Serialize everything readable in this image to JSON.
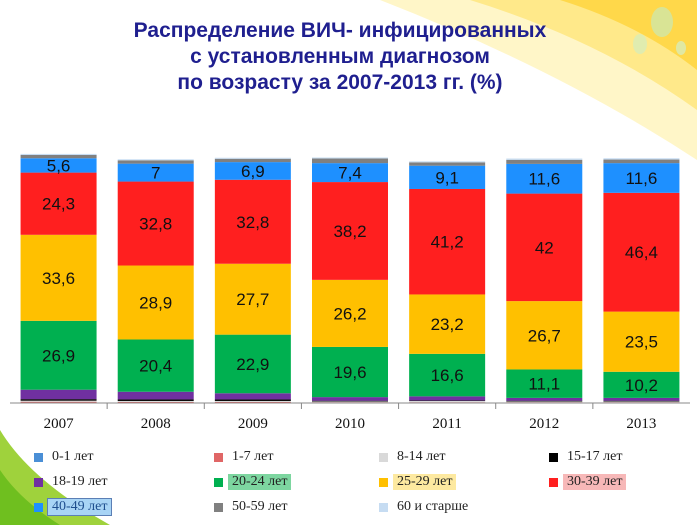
{
  "title_lines": [
    "Распределение ВИЧ- инфицированных",
    "с установленным диагнозом",
    "по возрасту за 2007-2013 гг. (%)"
  ],
  "chart_data": {
    "type": "bar",
    "stacked": true,
    "categories": [
      "2007",
      "2008",
      "2009",
      "2010",
      "2011",
      "2012",
      "2013"
    ],
    "ylim": [
      0,
      100
    ],
    "series": [
      {
        "name": "0-1 лет",
        "color": "#4a8fd6",
        "values": [
          0.2,
          0.1,
          0.1,
          0.1,
          0.1,
          0.1,
          0.1
        ]
      },
      {
        "name": "1-7 лет",
        "color": "#e06666",
        "values": [
          0.3,
          0.3,
          0.3,
          0.2,
          0.2,
          0.2,
          0.2
        ]
      },
      {
        "name": "8-14 лет",
        "color": "#d9d9d9",
        "values": [
          0.4,
          0.4,
          0.4,
          0.3,
          0.5,
          0.3,
          0.3
        ]
      },
      {
        "name": "15-17 лет",
        "color": "#000000",
        "values": [
          0.6,
          0.6,
          0.6,
          0.3,
          0.2,
          0.3,
          0.3
        ]
      },
      {
        "name": "18-19 лет",
        "color": "#7030a0",
        "values": [
          3.7,
          3.0,
          2.4,
          1.4,
          1.6,
          1.1,
          1.1
        ]
      },
      {
        "name": "20-24 лет",
        "color": "#00b050",
        "values": [
          26.9,
          20.4,
          22.9,
          19.6,
          16.6,
          11.1,
          10.2
        ]
      },
      {
        "name": "25-29 лет",
        "color": "#ffc000",
        "values": [
          33.6,
          28.9,
          27.7,
          26.2,
          23.2,
          26.7,
          23.5
        ]
      },
      {
        "name": "30-39 лет",
        "color": "#ff1f1f",
        "values": [
          24.3,
          32.8,
          32.8,
          38.2,
          41.2,
          42.0,
          46.4
        ]
      },
      {
        "name": "40-49 лет",
        "color": "#1e90ff",
        "values": [
          5.6,
          7.0,
          6.9,
          7.4,
          9.1,
          11.6,
          11.6
        ]
      },
      {
        "name": "50-59 лет",
        "color": "#808080",
        "values": [
          1.3,
          1.3,
          1.3,
          1.8,
          1.3,
          1.6,
          1.4
        ]
      },
      {
        "name": "60 и старше",
        "color": "#c6dcf2",
        "values": [
          0.4,
          0.4,
          0.4,
          0.4,
          0.4,
          0.5,
          0.5
        ]
      }
    ],
    "labeled_series": [
      "20-24 лет",
      "25-29 лет",
      "30-39 лет",
      "40-49 лет"
    ],
    "label_texts": {
      "20-24 лет": [
        "26,9",
        "20,4",
        "22,9",
        "19,6",
        "16,6",
        "11,1",
        "10,2"
      ],
      "25-29 лет": [
        "33,6",
        "28,9",
        "27,7",
        "26,2",
        "23,2",
        "26,7",
        "23,5"
      ],
      "30-39 лет": [
        "24,3",
        "32,8",
        "32,8",
        "38,2",
        "41,2",
        "42",
        "46,4"
      ],
      "40-49 лет": [
        "5,6",
        "7",
        "6,9",
        "7,4",
        "9,1",
        "11,6",
        "11,6"
      ]
    },
    "legend_position": "bottom",
    "legend_highlights": {
      "20-24 лет": "#7dd6a0",
      "25-29 лет": "#fde9a0",
      "30-39 лет": "#f7b8b8",
      "40-49 лет": "#a8d4f5"
    }
  }
}
